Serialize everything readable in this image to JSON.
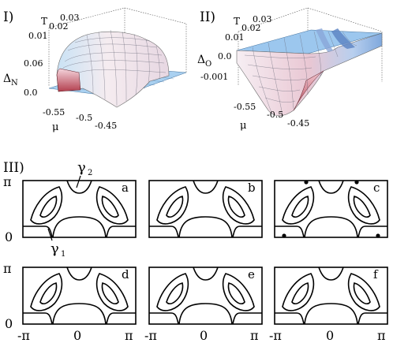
{
  "panel_I": {
    "label": "I)",
    "z_symbol": "Δ",
    "z_subscript": "N",
    "t_axis_label": "T",
    "t_ticks": [
      "0.01",
      "0.02",
      "0.03"
    ],
    "z_ticks": [
      "0.06",
      "0.0"
    ],
    "mu_axis_label": "μ",
    "mu_ticks": [
      "-0.55",
      "-0.5",
      "-0.45"
    ]
  },
  "panel_II": {
    "label": "II)",
    "z_symbol": "Δ",
    "z_subscript": "O",
    "t_axis_label": "T",
    "t_ticks": [
      "0.01",
      "0.02",
      "0.03"
    ],
    "z_ticks": [
      "0.0",
      "-0.001"
    ],
    "mu_axis_label": "μ",
    "mu_ticks": [
      "-0.55",
      "-0.5",
      "-0.45"
    ]
  },
  "panel_III": {
    "label": "III)",
    "subpanels": [
      "a",
      "b",
      "c",
      "d",
      "e",
      "f"
    ],
    "gamma_symbol": "γ",
    "gamma_2_sub": "2",
    "gamma_1_sub": "1",
    "y_ticks": [
      "π",
      "0"
    ],
    "x_ticks": [
      "-π",
      "0",
      "π"
    ]
  },
  "colors": {
    "surface_light": "#f4e8ee",
    "surface_mid": "#e8b8c6",
    "surface_dark": "#b84a5a",
    "base_blue": "#7fb8e8",
    "base_blue_light": "#b7d8f2",
    "line": "#000000"
  }
}
